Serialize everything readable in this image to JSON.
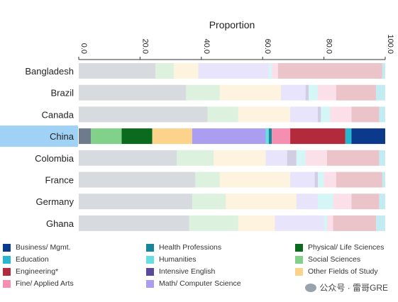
{
  "chart_data": {
    "type": "bar",
    "orientation": "horizontal",
    "stacked": true,
    "title": "Proportion",
    "xlabel": "",
    "ylabel": "",
    "xlim": [
      0,
      100
    ],
    "xticks": [
      "0.0",
      "20.0",
      "40.0",
      "60.0",
      "80.0",
      "100.0"
    ],
    "highlighted_category": "China",
    "categories": [
      "Bangladesh",
      "Brazil",
      "Canada",
      "China",
      "Colombia",
      "France",
      "Germany",
      "Ghana"
    ],
    "series": [
      {
        "name": "Business/ Mgmt.",
        "color": "#0b3a8c",
        "values": [
          0,
          0,
          0,
          11,
          0,
          0,
          0,
          0
        ]
      },
      {
        "name": "Education",
        "color": "#29b6d1",
        "values": [
          1,
          3,
          2,
          2,
          2,
          1,
          2,
          3
        ]
      },
      {
        "name": "Engineering*",
        "color": "#b22a3c",
        "values": [
          34,
          13,
          9,
          18,
          17,
          15,
          9,
          14
        ]
      },
      {
        "name": "Fine/ Applied Arts",
        "color": "#f48fb1",
        "values": [
          2,
          6,
          7,
          6,
          7,
          4,
          6,
          2
        ]
      },
      {
        "name": "Health Professions",
        "color": "#17869a",
        "values": [
          0,
          0,
          0,
          1,
          0,
          0,
          0,
          0
        ]
      },
      {
        "name": "Humanities",
        "color": "#67dfe2",
        "values": [
          1,
          3,
          3,
          1,
          3,
          2,
          5,
          1
        ]
      },
      {
        "name": "Intensive English",
        "color": "#5a4a9c",
        "values": [
          0,
          1,
          1,
          0,
          3,
          1,
          0,
          0
        ]
      },
      {
        "name": "Math/ Computer Science",
        "color": "#ab9df0",
        "values": [
          23,
          8,
          9,
          24,
          7,
          8,
          7,
          16
        ]
      },
      {
        "name": "Other Fields of Study",
        "color": "#fbd38a",
        "values": [
          8,
          20,
          17,
          13,
          17,
          23,
          23,
          12
        ]
      },
      {
        "name": "Physical/ Life Sciences",
        "color": "#0a6b1e",
        "values": [
          0,
          0,
          0,
          10,
          0,
          0,
          0,
          0
        ]
      },
      {
        "name": "Social Sciences",
        "color": "#82d18a",
        "values": [
          6,
          11,
          10,
          10,
          12,
          8,
          11,
          16
        ]
      }
    ],
    "residual_color": "#6e7b8c"
  },
  "legend": [
    {
      "label": "Business/ Mgmt.",
      "color": "#0b3a8c"
    },
    {
      "label": "Health Professions",
      "color": "#17869a"
    },
    {
      "label": "Physical/ Life Sciences",
      "color": "#0a6b1e"
    },
    {
      "label": "Education",
      "color": "#29b6d1"
    },
    {
      "label": "Humanities",
      "color": "#67dfe2"
    },
    {
      "label": "Social Sciences",
      "color": "#82d18a"
    },
    {
      "label": "Engineering*",
      "color": "#b22a3c"
    },
    {
      "label": "Intensive English",
      "color": "#5a4a9c"
    },
    {
      "label": "Other Fields of Study",
      "color": "#fbd38a"
    },
    {
      "label": "Fine/ Applied Arts",
      "color": "#f48fb1"
    },
    {
      "label": "Math/ Computer Science",
      "color": "#ab9df0"
    }
  ],
  "watermark": "公众号 · 雷哥GRE"
}
